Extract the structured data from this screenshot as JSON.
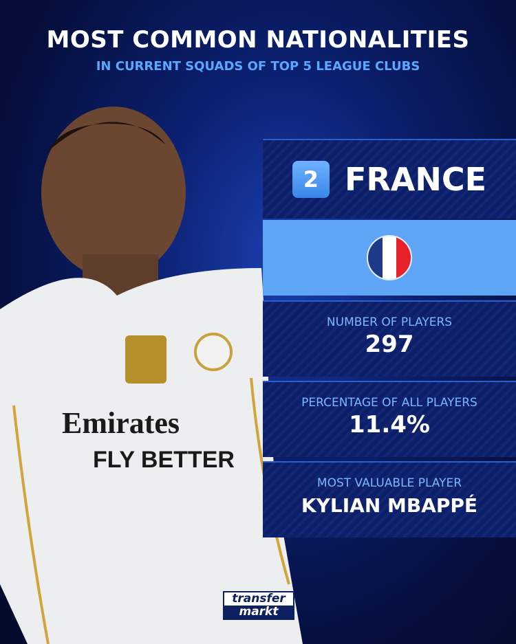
{
  "header": {
    "title": "MOST COMMON NATIONALITIES",
    "subtitle": "IN CURRENT SQUADS OF TOP 5 LEAGUE CLUBS"
  },
  "card": {
    "rank": "2",
    "country": "FRANCE",
    "flag_colors": [
      "#1e3a8a",
      "#ffffff",
      "#e8202a"
    ],
    "stats": [
      {
        "label": "NUMBER OF PLAYERS",
        "value": "297"
      },
      {
        "label": "PERCENTAGE OF ALL PLAYERS",
        "value": "11.4%"
      },
      {
        "label": "MOST VALUABLE PLAYER",
        "value": "KYLIAN MBAPPÉ"
      }
    ]
  },
  "shirt": {
    "sponsor": "Emirates",
    "tagline": "FLY BETTER"
  },
  "logo": {
    "line1": "transfer",
    "line2": "markt"
  },
  "colors": {
    "accent": "#5aa8ff",
    "panel": "#0c1f6b",
    "band": "#5ea6f5"
  }
}
